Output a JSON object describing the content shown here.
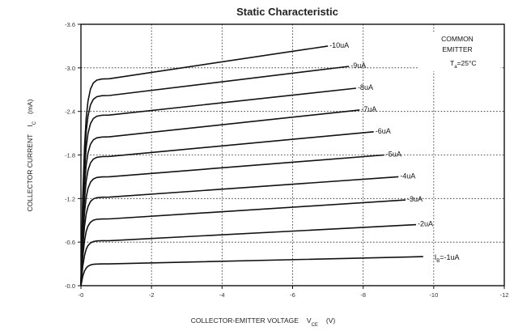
{
  "chart_data": {
    "type": "line",
    "title": "Static Characteristic",
    "xlabel": "COLLECTOR-EMITTER VOLTAGE",
    "xlabel_symbol": "V",
    "xlabel_subscript": "CE",
    "xlabel_unit": "(V)",
    "ylabel": "COLLECTOR CURRENT",
    "ylabel_symbol": "I",
    "ylabel_subscript": "C",
    "ylabel_unit": "(mA)",
    "xlim": [
      0,
      -12
    ],
    "ylim": [
      0,
      -3.6
    ],
    "x_ticks": [
      "-0",
      "-2",
      "-4",
      "-6",
      "-8",
      "-10",
      "-12"
    ],
    "y_ticks": [
      "-0.0",
      "-0.6",
      "-1.2",
      "-1.8",
      "-2.4",
      "-3.0",
      "-3.6"
    ],
    "grid": true,
    "note": {
      "line1": "COMMON",
      "line2": "EMITTER",
      "line3_prefix": "T",
      "line3_sub": "a",
      "line3_suffix": "=25°C"
    },
    "series": [
      {
        "name": "-10uA",
        "label": "-10uA",
        "ib_ua": -10,
        "x_end": -7.0,
        "knee": -0.5,
        "i_sat": -2.85,
        "i_end": -3.3
      },
      {
        "name": "-9uA",
        "label": "-9uA",
        "ib_ua": -9,
        "x_end": -7.6,
        "knee": -0.5,
        "i_sat": -2.62,
        "i_end": -3.02
      },
      {
        "name": "-8uA",
        "label": "-8uA",
        "ib_ua": -8,
        "x_end": -7.8,
        "knee": -0.5,
        "i_sat": -2.35,
        "i_end": -2.72
      },
      {
        "name": "-7uA",
        "label": "-7uA",
        "ib_ua": -7,
        "x_end": -7.9,
        "knee": -0.5,
        "i_sat": -2.05,
        "i_end": -2.42
      },
      {
        "name": "-6uA",
        "label": "-6uA",
        "ib_ua": -6,
        "x_end": -8.3,
        "knee": -0.5,
        "i_sat": -1.78,
        "i_end": -2.12
      },
      {
        "name": "-5uA",
        "label": "-5uA",
        "ib_ua": -5,
        "x_end": -8.6,
        "knee": -0.5,
        "i_sat": -1.5,
        "i_end": -1.8
      },
      {
        "name": "-4uA",
        "label": "-4uA",
        "ib_ua": -4,
        "x_end": -9.0,
        "knee": -0.5,
        "i_sat": -1.22,
        "i_end": -1.5
      },
      {
        "name": "-3uA",
        "label": "-3uA",
        "ib_ua": -3,
        "x_end": -9.2,
        "knee": -0.5,
        "i_sat": -0.92,
        "i_end": -1.18
      },
      {
        "name": "-2uA",
        "label": "-2uA",
        "ib_ua": -2,
        "x_end": -9.5,
        "knee": -0.5,
        "i_sat": -0.62,
        "i_end": -0.84
      },
      {
        "name": "-1uA",
        "label": "=-1uA",
        "ib_ua": -1,
        "x_end": -9.7,
        "knee": -0.5,
        "i_sat": -0.3,
        "i_end": -0.4,
        "label_prefix": "I",
        "label_sub": "B"
      }
    ]
  }
}
